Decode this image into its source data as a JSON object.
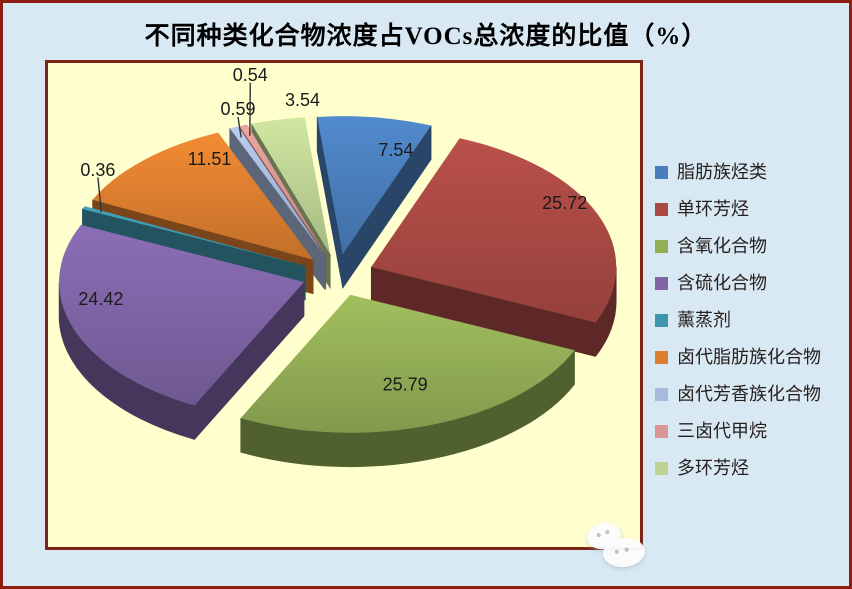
{
  "canvas": {
    "bg": "#D9E9F3",
    "frame_color": "#8E1D12"
  },
  "chart_data": {
    "type": "pie",
    "style": "3d-exploded",
    "title": "不同种类化合物浓度占VOCs总浓度的比值（%）",
    "unit": "%",
    "legend_position": "right",
    "plot_bg": "#FFFFCE",
    "plot_border": "#7E2318",
    "label_color": "#1b1b1b",
    "series": [
      {
        "label": "脂肪族烃类",
        "value": 7.54,
        "color": "#4A7EBB"
      },
      {
        "label": "单环芳烃",
        "value": 25.72,
        "color": "#A94943"
      },
      {
        "label": "含氧化合物",
        "value": 25.79,
        "color": "#93AE56"
      },
      {
        "label": "含硫化合物",
        "value": 24.42,
        "color": "#7E64A5"
      },
      {
        "label": "薰蒸剂",
        "value": 0.36,
        "color": "#3E96AC"
      },
      {
        "label": "卤代脂肪族化合物",
        "value": 11.51,
        "color": "#DD7E2F"
      },
      {
        "label": "卤代芳香族化合物",
        "value": 0.59,
        "color": "#A8BADC"
      },
      {
        "label": "三卤代甲烷",
        "value": 0.54,
        "color": "#D99694"
      },
      {
        "label": "多环芳烃",
        "value": 3.54,
        "color": "#BDD293"
      }
    ]
  },
  "watermark": {
    "icon": "cloud-sticker"
  }
}
